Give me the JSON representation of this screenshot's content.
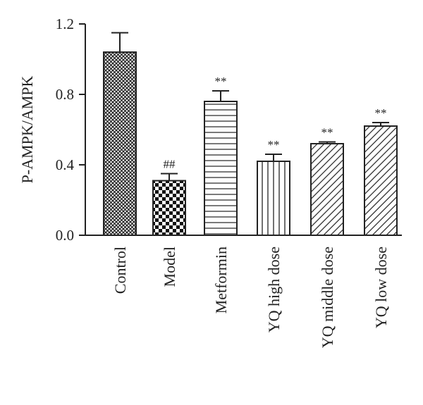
{
  "chart_data": {
    "type": "bar",
    "title": "",
    "xlabel": "",
    "ylabel": "P-AMPK/AMPK",
    "ylim": [
      0,
      1.2
    ],
    "yticks": [
      "0.0",
      "0.4",
      "0.8",
      "1.2"
    ],
    "ytick_values": [
      0.0,
      0.4,
      0.8,
      1.2
    ],
    "grid": false,
    "categories": [
      "Control",
      "Model",
      "Metformin",
      "YQ high dose",
      "YQ middle dose",
      "YQ low dose"
    ],
    "values": [
      1.04,
      0.31,
      0.76,
      0.42,
      0.52,
      0.62
    ],
    "errors": [
      0.11,
      0.04,
      0.06,
      0.04,
      0.01,
      0.02
    ],
    "annotations": [
      "",
      "##",
      "**",
      "**",
      "**",
      "**"
    ],
    "fill_patterns": [
      "dense-crosshatch",
      "checkerboard",
      "horizontal-lines",
      "vertical-lines",
      "diagonal-lines",
      "diagonal-lines"
    ],
    "bar_color": "#222222"
  }
}
